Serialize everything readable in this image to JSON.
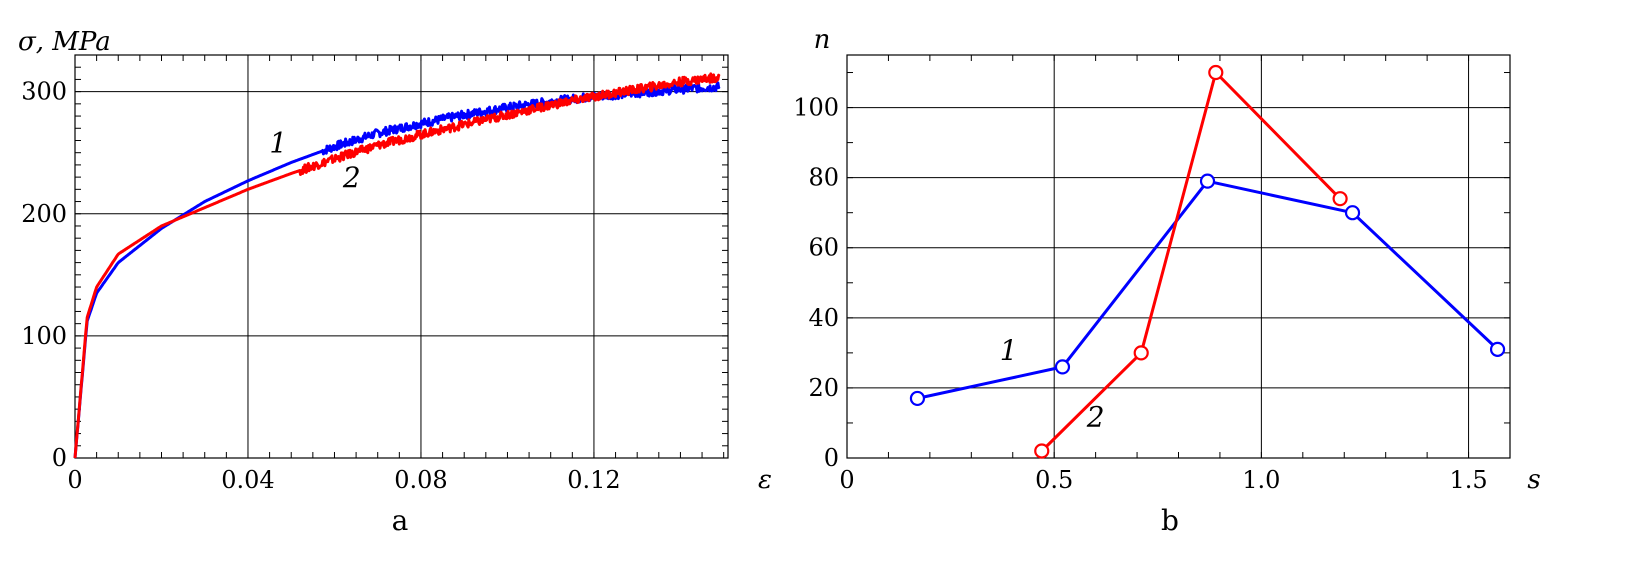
{
  "chart_data": [
    {
      "type": "line",
      "panel_label": "a",
      "ylabel": "σ, MPa",
      "xlabel": "ε",
      "xlim": [
        0,
        0.151
      ],
      "ylim": [
        0,
        330
      ],
      "xticks": [
        0,
        0.04,
        0.08,
        0.12
      ],
      "xtick_labels": [
        "0",
        "0.04",
        "0.08",
        "0.12"
      ],
      "yticks": [
        0,
        100,
        200,
        300
      ],
      "ytick_labels": [
        "0",
        "100",
        "200",
        "300"
      ],
      "grid": true,
      "colors": [
        "#0000ff",
        "#ff0000"
      ],
      "series": [
        {
          "label": "1",
          "color": "#0000ff",
          "x": [
            0,
            0.0028,
            0.005,
            0.01,
            0.02,
            0.03,
            0.04,
            0.05,
            0.06,
            0.07,
            0.08,
            0.09,
            0.1,
            0.11,
            0.12,
            0.13,
            0.14,
            0.149
          ],
          "y": [
            0,
            112,
            135,
            160,
            188,
            210,
            227,
            242,
            255,
            266,
            274,
            281,
            287,
            292,
            296,
            299,
            302,
            304
          ]
        },
        {
          "label": "2",
          "color": "#ff0000",
          "x": [
            0,
            0.0028,
            0.005,
            0.01,
            0.02,
            0.03,
            0.04,
            0.05,
            0.06,
            0.07,
            0.08,
            0.09,
            0.1,
            0.11,
            0.12,
            0.13,
            0.14,
            0.149
          ],
          "y": [
            0,
            115,
            140,
            167,
            190,
            205,
            220,
            233,
            245,
            256,
            265,
            273,
            281,
            289,
            296,
            302,
            308,
            312
          ]
        }
      ]
    },
    {
      "type": "line",
      "panel_label": "b",
      "ylabel": "n",
      "xlabel": "s",
      "xlim": [
        0,
        1.6
      ],
      "ylim": [
        0,
        115
      ],
      "xticks": [
        0,
        0.5,
        1.0,
        1.5
      ],
      "xtick_labels": [
        "0",
        "0.5",
        "1.0",
        "1.5"
      ],
      "yticks": [
        0,
        20,
        40,
        60,
        80,
        100
      ],
      "ytick_labels": [
        "0",
        "20",
        "40",
        "60",
        "80",
        "100"
      ],
      "grid": true,
      "markers": "open-circle",
      "colors": [
        "#0000ff",
        "#ff0000"
      ],
      "series": [
        {
          "label": "1",
          "color": "#0000ff",
          "x": [
            0.17,
            0.52,
            0.87,
            1.22,
            1.57
          ],
          "y": [
            17,
            26,
            79,
            70,
            31
          ]
        },
        {
          "label": "2",
          "color": "#ff0000",
          "x": [
            0.47,
            0.71,
            0.89,
            1.19
          ],
          "y": [
            2,
            30,
            110,
            74
          ]
        }
      ]
    }
  ]
}
